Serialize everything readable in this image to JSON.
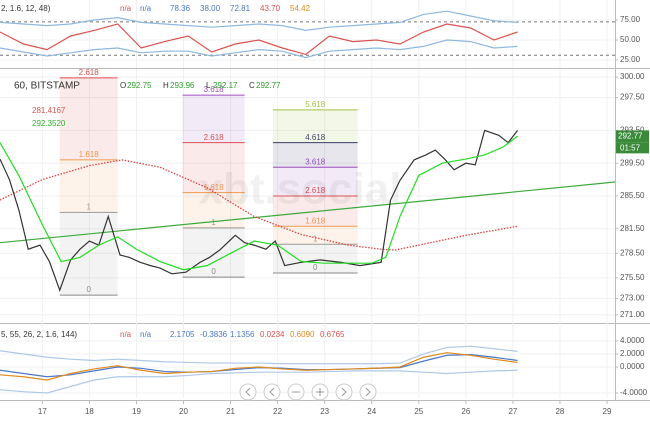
{
  "chart_data": [
    {
      "type": "line",
      "header": "2, 1.6, 12, 48)",
      "legend_values": [
        "n/a",
        "n/a",
        "78.36",
        "38.00",
        "72.81",
        "43.70",
        "54.42"
      ],
      "xlim": [
        16.1,
        29.17
      ],
      "ylim": [
        15,
        97.5
      ],
      "yticks": [
        {
          "value": 75,
          "label": "75.00"
        },
        {
          "value": 50,
          "label": "50.00"
        },
        {
          "value": 25,
          "label": "25.00"
        }
      ],
      "hlines": [
        72.6,
        31
      ],
      "series": [
        {
          "color": "#8fb8e0",
          "x": [
            16.1,
            16.6,
            17.1,
            17.6,
            18.1,
            18.6,
            19.1,
            19.6,
            20.1,
            20.6,
            21.1,
            21.6,
            22.1,
            22.6,
            23.1,
            23.6,
            24.1,
            24.6,
            25.1,
            25.6,
            26.1,
            26.6,
            27.1
          ],
          "values": [
            72,
            70,
            68,
            70,
            75,
            78,
            72,
            70,
            68,
            66,
            68,
            70,
            68,
            62,
            66,
            68,
            70,
            72,
            82,
            86,
            80,
            74,
            72
          ]
        },
        {
          "color": "#8fb8e0",
          "x": [
            16.1,
            16.6,
            17.1,
            17.6,
            18.1,
            18.6,
            19.1,
            19.6,
            20.1,
            20.6,
            21.1,
            21.6,
            22.1,
            22.6,
            23.1,
            23.6,
            24.1,
            24.6,
            25.1,
            25.6,
            26.1,
            26.6,
            27.1
          ],
          "values": [
            40,
            35,
            30,
            34,
            38,
            40,
            34,
            36,
            36,
            30,
            34,
            38,
            36,
            28,
            36,
            38,
            40,
            38,
            42,
            50,
            48,
            40,
            42
          ]
        },
        {
          "color": "#d9534f",
          "x": [
            16.1,
            16.6,
            17.1,
            17.6,
            18.1,
            18.6,
            19.1,
            19.6,
            20.1,
            20.6,
            21.1,
            21.6,
            22.1,
            22.6,
            23.1,
            23.6,
            24.1,
            24.6,
            25.1,
            25.6,
            26.1,
            26.6,
            27.1
          ],
          "values": [
            60,
            45,
            38,
            55,
            62,
            70,
            40,
            48,
            55,
            35,
            45,
            50,
            40,
            32,
            55,
            48,
            50,
            45,
            60,
            70,
            65,
            50,
            60
          ]
        }
      ]
    },
    {
      "type": "line",
      "ticker": "60, BITSTAMP",
      "ohlc": [
        {
          "label": "O",
          "value": 292.75
        },
        {
          "label": "H",
          "value": 293.96
        },
        {
          "label": "L",
          "value": 292.17
        },
        {
          "label": "C",
          "value": 292.77
        }
      ],
      "indicator_labels": [
        {
          "text": "281.4167",
          "color": "#d9534f"
        },
        {
          "text": "292.3520",
          "color": "#2bb32b"
        }
      ],
      "watermark": "xbt.social",
      "last_price": 292.77,
      "countdown": "01:57",
      "xlim": [
        16.1,
        29.17
      ],
      "ylim": [
        270,
        300.5
      ],
      "xticks": [
        17,
        18,
        19,
        20,
        21,
        22,
        23,
        24,
        25,
        26,
        27,
        28,
        29
      ],
      "yticks": [
        {
          "value": 300,
          "label": "300.00"
        },
        {
          "value": 297.5,
          "label": "297.50"
        },
        {
          "value": 293.5,
          "label": "293.50"
        },
        {
          "value": 289.5,
          "label": "289.50"
        },
        {
          "value": 285.5,
          "label": "285.50"
        },
        {
          "value": 281.5,
          "label": "281.50"
        },
        {
          "value": 278.5,
          "label": "278.50"
        },
        {
          "value": 275.5,
          "label": "275.50"
        },
        {
          "value": 273,
          "label": "273.00"
        },
        {
          "value": 271,
          "label": "271.00"
        }
      ],
      "fib": [
        {
          "x": [
            17.37,
            18.6
          ],
          "levels": [
            {
              "label": "0",
              "value": 273.4,
              "color": "#888888"
            },
            {
              "label": "1",
              "value": 283.5,
              "color": "#999999"
            },
            {
              "label": "1.618",
              "value": 289.9,
              "color": "#f0a050"
            },
            {
              "label": "2.618",
              "value": 299.9,
              "color": "#e05050"
            }
          ]
        },
        {
          "x": [
            19.98,
            21.3
          ],
          "levels": [
            {
              "label": "0",
              "value": 275.6,
              "color": "#888888"
            },
            {
              "label": "1",
              "value": 281.6,
              "color": "#999999"
            },
            {
              "label": "1.618",
              "value": 285.9,
              "color": "#f0a050"
            },
            {
              "label": "2.618",
              "value": 292,
              "color": "#e05050"
            },
            {
              "label": "3.618",
              "value": 297.8,
              "color": "#a050c0"
            }
          ]
        },
        {
          "x": [
            21.9,
            23.7
          ],
          "levels": [
            {
              "label": "0",
              "value": 276.1,
              "color": "#888888"
            },
            {
              "label": "1",
              "value": 279.6,
              "color": "#999999"
            },
            {
              "label": "1.618",
              "value": 281.8,
              "color": "#f0a050"
            },
            {
              "label": "2.618",
              "value": 285.5,
              "color": "#e05050"
            },
            {
              "label": "3.618",
              "value": 289,
              "color": "#a050c0"
            },
            {
              "label": "4.618",
              "value": 292,
              "color": "#333366"
            },
            {
              "label": "5.618",
              "value": 296,
              "color": "#a0c040"
            }
          ]
        }
      ],
      "series": [
        {
          "color": "#3caa3c",
          "x": [
            16.1,
            29.17
          ],
          "values": [
            279.8,
            287.2
          ]
        },
        {
          "color": "#e04040",
          "dash": true,
          "x": [
            16.1,
            17,
            18,
            18.7,
            19.5,
            20.5,
            21.5,
            22.5,
            23.5,
            24.2,
            24.5,
            25,
            26,
            27.1
          ],
          "values": [
            285,
            287.5,
            289.2,
            289.9,
            289,
            286.5,
            283,
            280.8,
            279.5,
            279,
            278.9,
            279.5,
            280.7,
            281.8
          ]
        },
        {
          "color": "#333333",
          "x": [
            16.1,
            16.3,
            16.5,
            16.7,
            16.95,
            17.15,
            17.37,
            17.6,
            17.8,
            18.0,
            18.2,
            18.4,
            18.65,
            18.85,
            19.08,
            19.3,
            19.5,
            19.75,
            20.05,
            20.35,
            20.55,
            20.77,
            21.1,
            21.3,
            21.5,
            21.75,
            21.95,
            22.15,
            22.5,
            22.9,
            23.35,
            23.75,
            24.2,
            24.4,
            24.6,
            24.9,
            25.15,
            25.35,
            25.55,
            25.75,
            26.0,
            26.2,
            26.4,
            26.7,
            26.9,
            27.1
          ],
          "values": [
            290,
            287.5,
            283.8,
            279,
            279.5,
            277.5,
            274,
            277.7,
            279,
            280,
            279.5,
            283,
            278.3,
            278,
            277.4,
            277,
            276.7,
            276,
            276.2,
            277.4,
            278,
            278.9,
            280.7,
            279.8,
            279.5,
            279,
            280,
            277,
            277.4,
            277.7,
            277.4,
            277,
            277.4,
            285,
            287.4,
            289.9,
            290.5,
            291.1,
            290,
            288.7,
            289.5,
            289.3,
            293.5,
            292.9,
            292,
            293.5
          ]
        },
        {
          "color": "#22dd22",
          "x": [
            16.1,
            16.5,
            17.0,
            17.4,
            17.8,
            18.2,
            18.6,
            19.0,
            19.5,
            20.0,
            20.5,
            21.0,
            21.5,
            22.0,
            22.5,
            23.0,
            23.5,
            24.0,
            24.3,
            24.6,
            25.0,
            25.5,
            26.0,
            26.4,
            26.8,
            27.1
          ],
          "values": [
            292,
            288,
            282,
            277.5,
            278,
            279.5,
            280.5,
            279,
            277.5,
            276.5,
            277,
            278.5,
            280,
            279.5,
            277.5,
            277.3,
            277.3,
            277.3,
            278,
            283,
            288,
            289.5,
            290,
            290.5,
            291.5,
            292.8
          ]
        }
      ]
    },
    {
      "type": "line",
      "header": "5, 55, 26, 2, 1.6, 144)",
      "legend_values": [
        "n/a",
        "n/a",
        "2.1705",
        "-0.3836",
        "1.1356",
        "0.0234",
        "0.6090",
        "0.6765"
      ],
      "xlim": [
        16.1,
        29.17
      ],
      "ylim": [
        -4.77,
        6.15
      ],
      "yticks": [
        {
          "value": 4,
          "label": "4.0000"
        },
        {
          "value": 2,
          "label": "2.0000"
        },
        {
          "value": 0,
          "label": "0.0000"
        },
        {
          "value": -4,
          "label": "-4.0000"
        }
      ],
      "series": [
        {
          "color": "#b0c8e8",
          "x": [
            16.1,
            16.6,
            17.1,
            17.6,
            18.1,
            18.6,
            19.1,
            19.6,
            20.1,
            20.6,
            21.1,
            21.6,
            22.1,
            22.6,
            23.1,
            23.6,
            24.1,
            24.6,
            25.1,
            25.6,
            26.1,
            26.6,
            27.1
          ],
          "values": [
            2.5,
            2,
            1.5,
            1.2,
            1,
            1.2,
            1,
            0.8,
            0.7,
            0.6,
            0.6,
            0.6,
            0.5,
            0.5,
            0.5,
            0.5,
            0.5,
            0.6,
            2,
            3,
            3.2,
            2.8,
            2.4
          ]
        },
        {
          "color": "#b0c8e8",
          "x": [
            16.1,
            16.6,
            17.1,
            17.6,
            18.1,
            18.6,
            19.1,
            19.6,
            20.1,
            20.6,
            21.1,
            21.6,
            22.1,
            22.6,
            23.1,
            23.6,
            24.1,
            24.6,
            25.1,
            25.6,
            26.1,
            26.6,
            27.1
          ],
          "values": [
            -3.5,
            -3.8,
            -4,
            -3,
            -2,
            -1.5,
            -1.5,
            -1.5,
            -1.3,
            -1,
            -0.9,
            -0.8,
            -0.8,
            -0.8,
            -0.7,
            -0.6,
            -0.6,
            -0.6,
            -0.8,
            -1,
            -0.8,
            -0.6,
            -0.5
          ]
        },
        {
          "color": "#4a78c8",
          "x": [
            16.1,
            16.6,
            17.1,
            17.6,
            18.1,
            18.6,
            19.1,
            19.6,
            20.1,
            20.6,
            21.1,
            21.6,
            22.1,
            22.6,
            23.1,
            23.6,
            24.1,
            24.6,
            25.1,
            25.6,
            26.1,
            26.6,
            27.1
          ],
          "values": [
            -0.5,
            -1,
            -1.5,
            -1.2,
            -0.6,
            0,
            -0.2,
            -0.7,
            -0.8,
            -0.7,
            -0.4,
            -0.1,
            -0.2,
            -0.4,
            -0.4,
            -0.3,
            -0.2,
            -0.1,
            0.9,
            1.8,
            1.9,
            1.5,
            1
          ]
        },
        {
          "color": "#e08a1e",
          "x": [
            16.1,
            16.6,
            17.1,
            17.6,
            18.1,
            18.6,
            19.1,
            19.6,
            20.1,
            20.6,
            21.1,
            21.6,
            22.1,
            22.6,
            23.1,
            23.6,
            24.1,
            24.6,
            25.1,
            25.6,
            26.1,
            26.6,
            27.1
          ],
          "values": [
            -1.2,
            -1.5,
            -2,
            -1,
            -0.3,
            0.2,
            -0.5,
            -1,
            -0.8,
            -0.7,
            -0.2,
            0,
            -0.3,
            -0.5,
            -0.4,
            -0.3,
            -0.2,
            0,
            1.5,
            2.2,
            1.8,
            1.2,
            0.7
          ]
        }
      ]
    }
  ]
}
